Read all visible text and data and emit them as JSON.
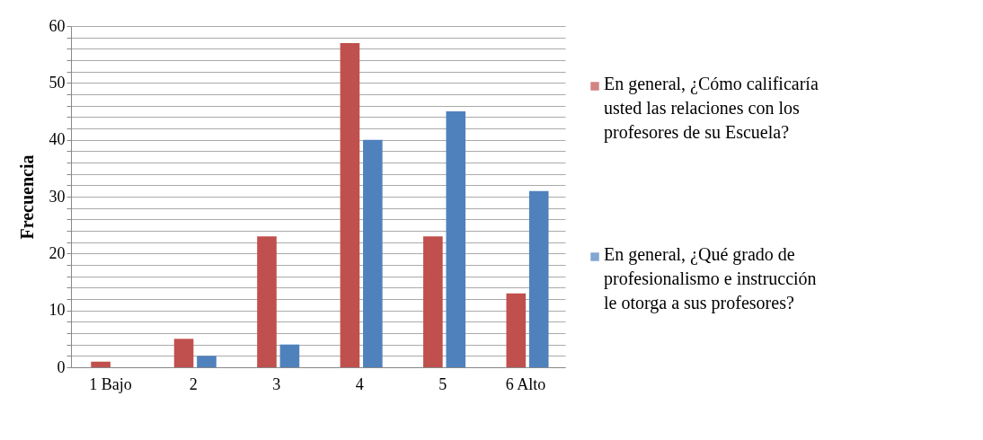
{
  "chart_data": {
    "type": "bar",
    "ylabel": "Frecuencia",
    "categories": [
      "1 Bajo",
      "2",
      "3",
      "4",
      "5",
      "6   Alto"
    ],
    "series": [
      {
        "name": "En general, ¿Cómo calificaría usted las relaciones con los profesores de su Escuela?",
        "color": "#c0504d",
        "values": [
          1,
          5,
          23,
          57,
          23,
          13
        ]
      },
      {
        "name": "En general, ¿Qué  grado de profesionalismo e instrucción le otorga a sus profesores?",
        "color": "#4f81bd",
        "values": [
          0,
          2,
          4,
          40,
          45,
          31
        ]
      }
    ],
    "ylim": [
      0,
      60
    ],
    "yticks": [
      0,
      {
        "value": 2,
        "label": null
      },
      {
        "value": 4,
        "label": null
      },
      {
        "value": 6,
        "label": null
      },
      {
        "value": 8,
        "label": null
      },
      10,
      {
        "value": 12,
        "label": null
      },
      {
        "value": 14,
        "label": null
      },
      {
        "value": 16,
        "label": null
      },
      {
        "value": 18,
        "label": null
      },
      20,
      {
        "value": 22,
        "label": null
      },
      {
        "value": 24,
        "label": null
      },
      {
        "value": 26,
        "label": null
      },
      {
        "value": 28,
        "label": null
      },
      30,
      {
        "value": 32,
        "label": null
      },
      {
        "value": 34,
        "label": null
      },
      {
        "value": 36,
        "label": null
      },
      {
        "value": 38,
        "label": null
      },
      40,
      {
        "value": 42,
        "label": null
      },
      {
        "value": 44,
        "label": null
      },
      {
        "value": 46,
        "label": null
      },
      {
        "value": 48,
        "label": null
      },
      50,
      {
        "value": 52,
        "label": null
      },
      {
        "value": 54,
        "label": null
      },
      {
        "value": 56,
        "label": null
      },
      {
        "value": 58,
        "label": null
      },
      60
    ],
    "grid": "y",
    "legend": "right"
  }
}
